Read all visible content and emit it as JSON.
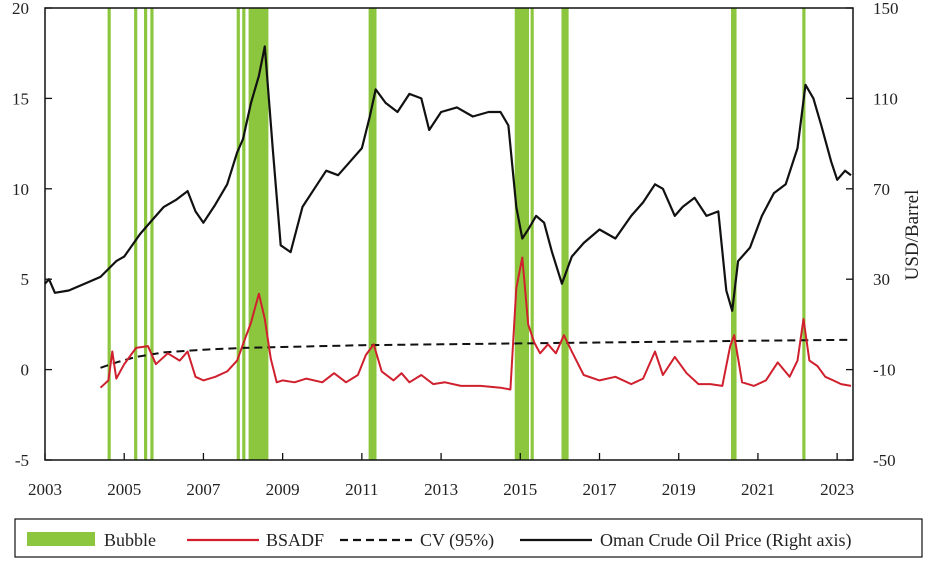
{
  "chart_data": {
    "type": "line",
    "title": "",
    "xlabel": "",
    "ylabel_left": "",
    "ylabel_right": "USD/Barrel",
    "x_range": [
      2003,
      2023.4
    ],
    "x_ticks": [
      "2003",
      "2005",
      "2007",
      "2009",
      "2011",
      "2013",
      "2015",
      "2017",
      "2019",
      "2021",
      "2023"
    ],
    "ylim_left": [
      -5,
      20
    ],
    "y_ticks_left": [
      "-5",
      "0",
      "5",
      "10",
      "15",
      "20"
    ],
    "ylim_right": [
      -50,
      150
    ],
    "y_ticks_right": [
      "-50",
      "-10",
      "30",
      "70",
      "110",
      "150"
    ],
    "grid": false,
    "legend": "bottom",
    "legend_entries": [
      "Bubble",
      "BSADF",
      "CV (95%)",
      "Oman Crude Oil Price (Right axis)"
    ],
    "colors": {
      "bubble": "#8cc63f",
      "bsadf": "#d0202e",
      "cv": "#111111",
      "oil": "#111111"
    },
    "bubble_periods": [
      [
        2004.58,
        2004.66
      ],
      [
        2005.25,
        2005.33
      ],
      [
        2005.5,
        2005.58
      ],
      [
        2005.66,
        2005.74
      ],
      [
        2007.84,
        2007.92
      ],
      [
        2007.98,
        2008.06
      ],
      [
        2008.14,
        2008.64
      ],
      [
        2011.17,
        2011.37
      ],
      [
        2014.86,
        2015.22
      ],
      [
        2015.26,
        2015.34
      ],
      [
        2016.04,
        2016.22
      ],
      [
        2020.32,
        2020.46
      ],
      [
        2022.12,
        2022.2
      ]
    ],
    "series": [
      {
        "name": "BSADF",
        "axis": "left",
        "x": [
          2004.4,
          2004.6,
          2004.7,
          2004.8,
          2005.0,
          2005.3,
          2005.6,
          2005.8,
          2006.1,
          2006.4,
          2006.6,
          2006.8,
          2007.0,
          2007.3,
          2007.6,
          2007.85,
          2008.0,
          2008.2,
          2008.4,
          2008.55,
          2008.7,
          2008.85,
          2009.0,
          2009.3,
          2009.6,
          2010.0,
          2010.3,
          2010.6,
          2010.9,
          2011.1,
          2011.3,
          2011.5,
          2011.8,
          2012.0,
          2012.2,
          2012.5,
          2012.8,
          2013.1,
          2013.5,
          2014.0,
          2014.5,
          2014.75,
          2014.9,
          2015.05,
          2015.2,
          2015.35,
          2015.5,
          2015.7,
          2015.9,
          2016.1,
          2016.3,
          2016.6,
          2017.0,
          2017.4,
          2017.8,
          2018.1,
          2018.4,
          2018.6,
          2018.9,
          2019.2,
          2019.5,
          2019.8,
          2020.1,
          2020.3,
          2020.4,
          2020.6,
          2020.9,
          2021.2,
          2021.5,
          2021.8,
          2022.0,
          2022.15,
          2022.3,
          2022.5,
          2022.7,
          2022.9,
          2023.1,
          2023.35
        ],
        "values": [
          -1.0,
          -0.6,
          1.0,
          -0.5,
          0.3,
          1.2,
          1.3,
          0.3,
          0.9,
          0.5,
          1.0,
          -0.4,
          -0.6,
          -0.4,
          -0.1,
          0.5,
          1.4,
          2.6,
          4.2,
          2.8,
          0.6,
          -0.7,
          -0.6,
          -0.7,
          -0.5,
          -0.7,
          -0.2,
          -0.7,
          -0.3,
          0.8,
          1.4,
          -0.1,
          -0.6,
          -0.2,
          -0.7,
          -0.3,
          -0.8,
          -0.7,
          -0.9,
          -0.9,
          -1.0,
          -1.1,
          4.5,
          6.2,
          2.5,
          1.5,
          0.9,
          1.4,
          0.9,
          1.9,
          1.0,
          -0.3,
          -0.6,
          -0.4,
          -0.8,
          -0.5,
          1.0,
          -0.3,
          0.7,
          -0.2,
          -0.8,
          -0.8,
          -0.9,
          1.3,
          1.9,
          -0.7,
          -0.9,
          -0.6,
          0.4,
          -0.4,
          0.5,
          2.8,
          0.5,
          0.2,
          -0.4,
          -0.6,
          -0.8,
          -0.9
        ]
      },
      {
        "name": "CV (95%)",
        "axis": "left",
        "x": [
          2004.4,
          2004.8,
          2005.3,
          2006.0,
          2007.0,
          2008.0,
          2009.0,
          2011.0,
          2013.0,
          2015.0,
          2017.0,
          2019.0,
          2021.0,
          2023.35
        ],
        "values": [
          0.1,
          0.4,
          0.7,
          0.95,
          1.1,
          1.2,
          1.25,
          1.35,
          1.4,
          1.45,
          1.5,
          1.55,
          1.6,
          1.65
        ]
      },
      {
        "name": "Oman Crude Oil Price (Right axis)",
        "axis": "right",
        "x": [
          2003.0,
          2003.1,
          2003.25,
          2003.6,
          2004.0,
          2004.4,
          2004.8,
          2005.0,
          2005.4,
          2005.7,
          2006.0,
          2006.3,
          2006.6,
          2006.8,
          2007.0,
          2007.3,
          2007.6,
          2007.85,
          2008.0,
          2008.2,
          2008.4,
          2008.55,
          2008.75,
          2008.95,
          2009.2,
          2009.5,
          2009.8,
          2010.1,
          2010.4,
          2010.7,
          2011.0,
          2011.2,
          2011.35,
          2011.6,
          2011.9,
          2012.2,
          2012.5,
          2012.7,
          2013.0,
          2013.4,
          2013.8,
          2014.2,
          2014.5,
          2014.7,
          2014.9,
          2015.05,
          2015.2,
          2015.4,
          2015.6,
          2015.8,
          2016.05,
          2016.3,
          2016.6,
          2017.0,
          2017.4,
          2017.8,
          2018.1,
          2018.4,
          2018.6,
          2018.9,
          2019.1,
          2019.4,
          2019.7,
          2020.0,
          2020.2,
          2020.35,
          2020.5,
          2020.8,
          2021.1,
          2021.4,
          2021.7,
          2022.0,
          2022.2,
          2022.4,
          2022.6,
          2022.85,
          2023.0,
          2023.2,
          2023.35
        ],
        "values": [
          28,
          30,
          24,
          25,
          28,
          31,
          38,
          40,
          50,
          56,
          62,
          65,
          69,
          60,
          55,
          63,
          72,
          86,
          92,
          108,
          120,
          133,
          88,
          45,
          42,
          62,
          70,
          78,
          76,
          82,
          88,
          102,
          114,
          108,
          104,
          112,
          110,
          96,
          104,
          106,
          102,
          104,
          104,
          98,
          62,
          48,
          52,
          58,
          55,
          42,
          28,
          40,
          46,
          52,
          48,
          58,
          64,
          72,
          70,
          58,
          62,
          66,
          58,
          60,
          25,
          16,
          38,
          44,
          58,
          68,
          72,
          88,
          116,
          110,
          98,
          82,
          74,
          78,
          76
        ]
      }
    ]
  }
}
